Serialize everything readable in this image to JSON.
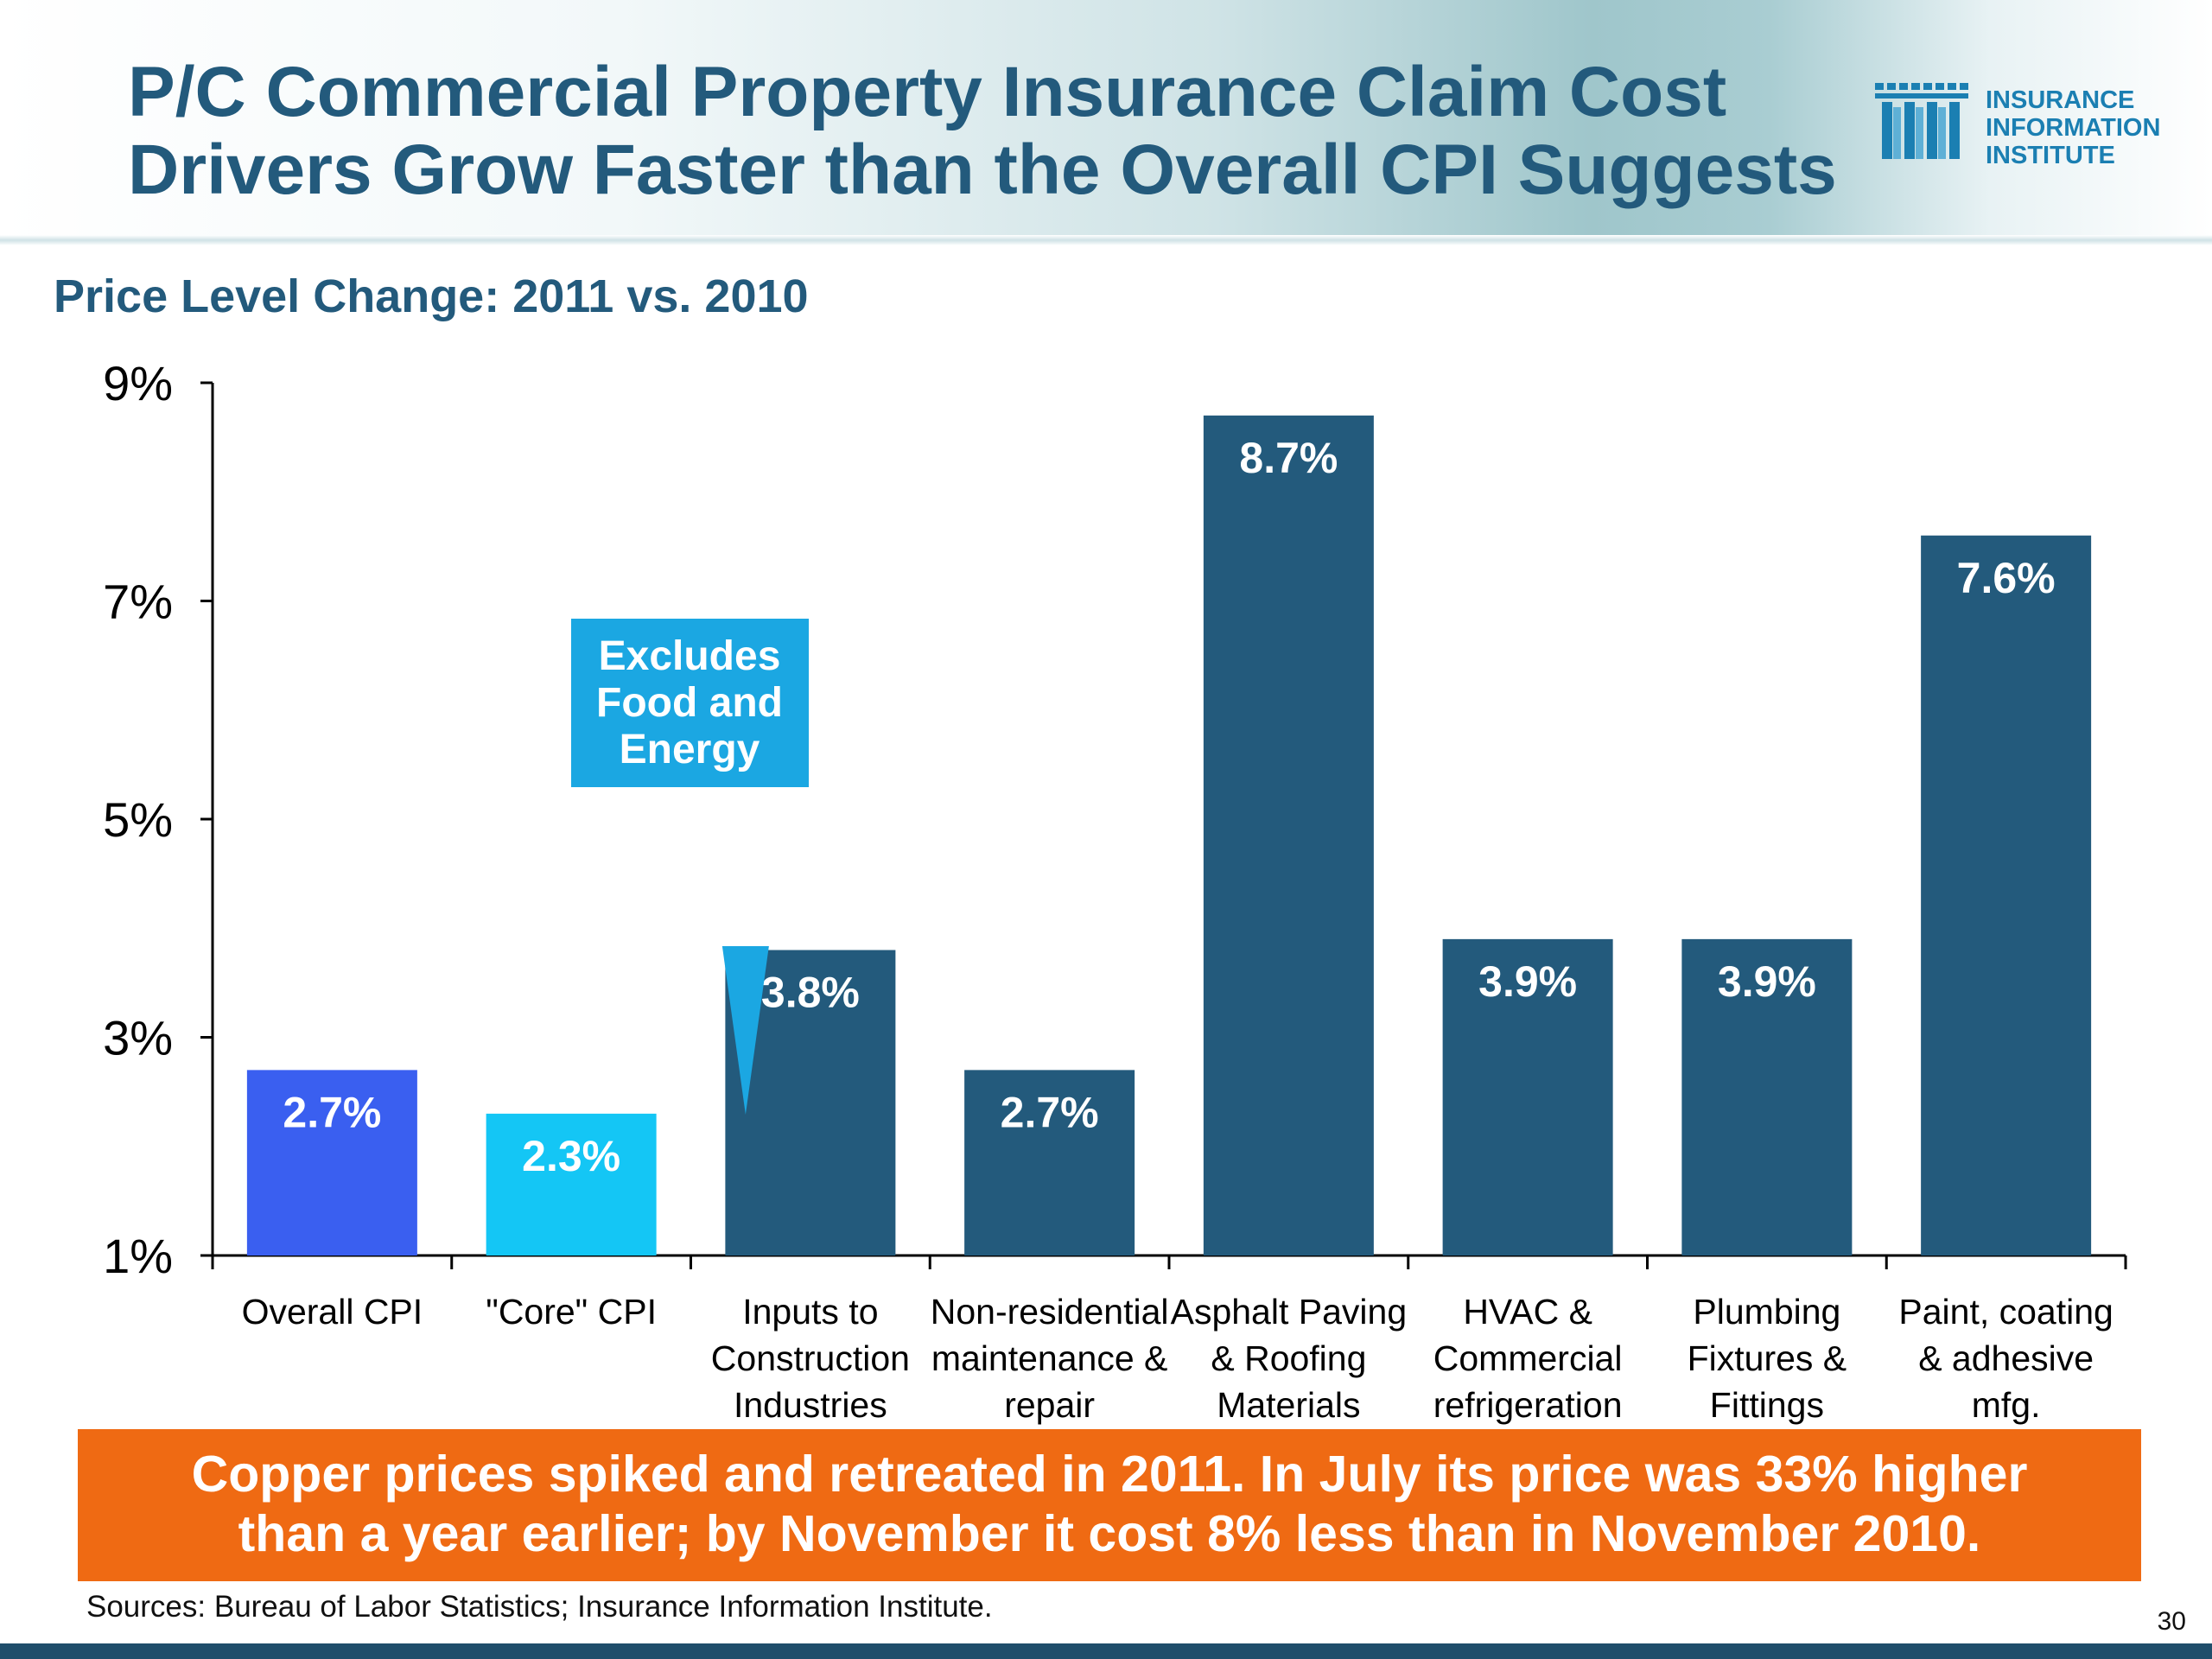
{
  "header": {
    "title_line1": "P/C Commercial Property Insurance Claim Cost",
    "title_line2": "Drivers Grow Faster than the Overall CPI Suggests",
    "logo_line1": "INSURANCE",
    "logo_line2": "INFORMATION",
    "logo_line3": "INSTITUTE"
  },
  "colors": {
    "title": "#235a7c",
    "bar_default": "#235a7c",
    "bar_overall_cpi": "#3a5ff0",
    "bar_core_cpi": "#14c6f5",
    "callout": "#1ba7e2",
    "banner": "#ef6a13"
  },
  "chart_data": {
    "type": "bar",
    "title": "Price Level Change: 2011 vs. 2010",
    "categories": [
      [
        "Overall CPI"
      ],
      [
        "\"Core\" CPI"
      ],
      [
        "Inputs to",
        "Construction",
        "Industries"
      ],
      [
        "Non-residential",
        "maintenance &",
        "repair"
      ],
      [
        "Asphalt Paving",
        "& Roofing",
        "Materials"
      ],
      [
        "HVAC &",
        "Commercial",
        "refrigeration"
      ],
      [
        "Plumbing",
        "Fixtures &",
        "Fittings"
      ],
      [
        "Paint, coating",
        "& adhesive",
        "mfg."
      ]
    ],
    "values": [
      2.7,
      2.3,
      3.8,
      2.7,
      8.7,
      3.9,
      3.9,
      7.6
    ],
    "value_labels": [
      "2.7%",
      "2.3%",
      "3.8%",
      "2.7%",
      "8.7%",
      "3.9%",
      "3.9%",
      "7.6%"
    ],
    "ylim": [
      1,
      9
    ],
    "yticks": [
      {
        "value": 1,
        "label": "1%"
      },
      {
        "value": 3,
        "label": "3%"
      },
      {
        "value": 5,
        "label": "5%"
      },
      {
        "value": 7,
        "label": "7%"
      },
      {
        "value": 9,
        "label": "9%"
      }
    ],
    "grid": false,
    "annotation": {
      "text_lines": [
        "Excludes",
        "Food and",
        "Energy"
      ],
      "points_to_category": 2
    }
  },
  "banner": {
    "line1": "Copper prices spiked and retreated in 2011. In July its price was 33% higher",
    "line2": "than a year earlier; by November it cost 8% less than in November 2010."
  },
  "footer": {
    "sources": "Sources: Bureau of Labor Statistics; Insurance Information Institute.",
    "page_number": "30"
  }
}
